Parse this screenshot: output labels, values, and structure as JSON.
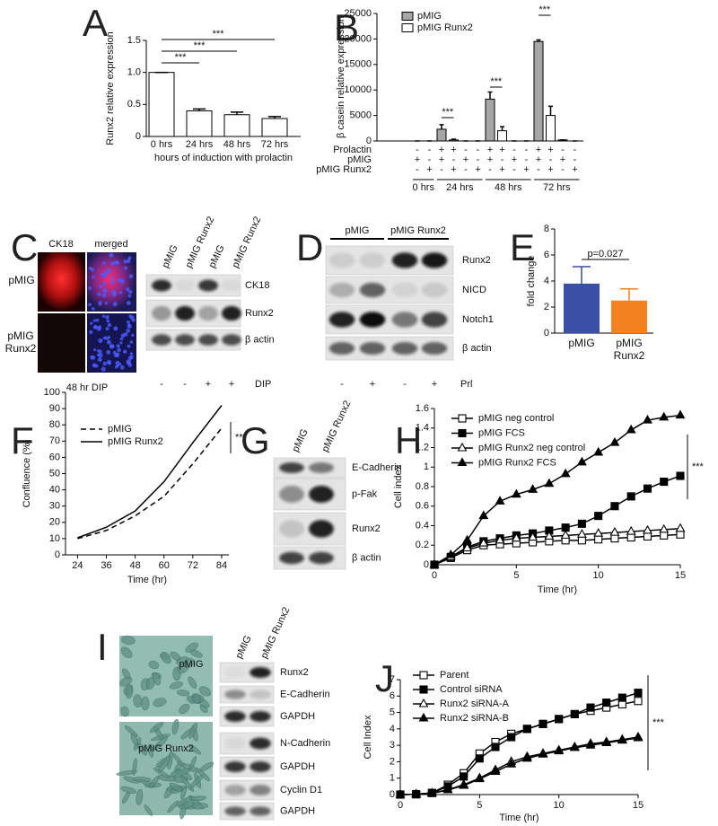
{
  "chart_data": [
    {
      "panel": "A",
      "type": "bar",
      "categories": [
        "0 hrs",
        "24 hrs",
        "48 hrs",
        "72 hrs"
      ],
      "values": [
        1.0,
        0.4,
        0.34,
        0.28
      ],
      "errors": [
        0,
        0.03,
        0.04,
        0.03
      ],
      "color": "#ffffff",
      "edgecolor": "#000000",
      "ylim": [
        0,
        1.5
      ],
      "yticks": [
        0,
        0.5,
        {
          "value": 1,
          "label": "1.0"
        },
        1.5
      ],
      "ylabel": "Runx2 relative expression",
      "xlabel": "hours of induction with prolactin",
      "annotations": [
        "***",
        "***",
        "***"
      ]
    },
    {
      "panel": "B",
      "type": "bar",
      "categories": [
        null,
        null,
        null,
        null,
        null,
        null,
        null,
        null,
        null,
        null,
        null,
        null,
        null,
        null
      ],
      "series": [
        {
          "name": "pMIG",
          "color": "#a6a6a6",
          "values": [
            0,
            null,
            2300,
            null,
            0,
            null,
            8200,
            null,
            0,
            null,
            19500,
            null,
            200,
            null
          ],
          "errors": [
            0,
            null,
            900,
            null,
            0,
            null,
            1400,
            null,
            0,
            null,
            300,
            null,
            0,
            null
          ]
        },
        {
          "name": "pMIG Runx2",
          "color": "#ffffff",
          "values": [
            null,
            0,
            null,
            200,
            null,
            0,
            null,
            2000,
            null,
            0,
            null,
            5000,
            null,
            0
          ],
          "errors": [
            null,
            0,
            null,
            150,
            null,
            0,
            null,
            800,
            null,
            0,
            null,
            1800,
            null,
            0
          ]
        }
      ],
      "edgecolor": "#000000",
      "ylim": [
        0,
        25000
      ],
      "yticks": [
        0,
        5000,
        10000,
        15000,
        20000,
        25000
      ],
      "ylabel": "β casein relative expression",
      "table": {
        "rows": [
          {
            "label": "Prolactin",
            "signs": [
              "-",
              "-",
              "+",
              "+",
              "-",
              "-",
              "+",
              "+",
              "-",
              "-",
              "+",
              "+",
              "-",
              "-"
            ]
          },
          {
            "label": "pMIG",
            "signs": [
              "+",
              "-",
              "+",
              "-",
              "+",
              "-",
              "+",
              "-",
              "+",
              "-",
              "+",
              "-",
              "+",
              "-"
            ]
          },
          {
            "label": "pMIG Runx2",
            "signs": [
              "-",
              "+",
              "-",
              "+",
              "-",
              "+",
              "-",
              "+",
              "-",
              "+",
              "-",
              "+",
              "-",
              "+"
            ]
          }
        ],
        "groups": [
          "0 hrs",
          "24 hrs",
          "48 hrs",
          "72 hrs"
        ]
      },
      "annotations": [
        "***",
        "***",
        "***"
      ]
    },
    {
      "panel": "E",
      "type": "bar",
      "categories": [
        "pMIG",
        "pMIG Runx2"
      ],
      "values": [
        3.8,
        2.5
      ],
      "errors": [
        1.3,
        0.9
      ],
      "colors": [
        "#3a4fa8",
        "#f58220"
      ],
      "ylim": [
        0,
        8
      ],
      "yticks": [
        0,
        2,
        4,
        6,
        8
      ],
      "ylabel": "fold change",
      "annotations": [
        "p=0.027"
      ]
    },
    {
      "panel": "F",
      "type": "line",
      "x": [
        24,
        36,
        48,
        60,
        72,
        84
      ],
      "xlim": [
        19,
        87
      ],
      "xticks": [
        24,
        36,
        48,
        60,
        72,
        84
      ],
      "ylim": [
        0,
        100
      ],
      "yticks": [
        0,
        10,
        20,
        30,
        40,
        50,
        60,
        70,
        80,
        90,
        100
      ],
      "series": [
        {
          "name": "pMIG",
          "color": "#000000",
          "style": "dashed",
          "values": [
            10,
            15,
            24,
            36,
            56,
            78
          ]
        },
        {
          "name": "pMIG Runx2",
          "color": "#000000",
          "style": "solid",
          "values": [
            10.5,
            17,
            27,
            45,
            69,
            92
          ]
        }
      ],
      "xlabel": "Time (hr)",
      "ylabel": "Confluence (%)",
      "annotations": [
        "***"
      ]
    },
    {
      "panel": "H",
      "type": "line",
      "x": [
        0,
        1,
        2,
        3,
        4,
        5,
        6,
        7,
        8,
        9,
        10,
        11,
        12,
        13,
        14,
        15
      ],
      "xlim": [
        0,
        15
      ],
      "xticks": [
        0,
        5,
        10,
        15
      ],
      "ylim": [
        0,
        1.6
      ],
      "yticks": [
        0,
        0.2,
        0.4,
        0.6,
        0.8,
        1,
        1.2,
        1.4,
        1.6
      ],
      "series": [
        {
          "name": "pMIG neg control",
          "color": "#000000",
          "marker": "square-open",
          "values": [
            0,
            0.07,
            0.15,
            0.2,
            0.21,
            0.22,
            0.23,
            0.24,
            0.25,
            0.25,
            0.26,
            0.27,
            0.28,
            0.29,
            0.3,
            0.31
          ]
        },
        {
          "name": "pMIG FCS",
          "color": "#000000",
          "marker": "square-filled",
          "values": [
            0,
            0.08,
            0.18,
            0.24,
            0.27,
            0.3,
            0.32,
            0.35,
            0.38,
            0.42,
            0.5,
            0.6,
            0.7,
            0.78,
            0.85,
            0.91
          ]
        },
        {
          "name": "pMIG Runx2 neg control",
          "color": "#000000",
          "marker": "triangle-open",
          "values": [
            0,
            0.08,
            0.17,
            0.22,
            0.25,
            0.27,
            0.28,
            0.29,
            0.3,
            0.31,
            0.32,
            0.33,
            0.34,
            0.35,
            0.36,
            0.37
          ]
        },
        {
          "name": "pMIG Runx2 FCS",
          "color": "#000000",
          "marker": "triangle-filled",
          "values": [
            0,
            0.1,
            0.25,
            0.5,
            0.65,
            0.72,
            0.77,
            0.83,
            0.93,
            1.05,
            1.15,
            1.25,
            1.38,
            1.48,
            1.51,
            1.53
          ]
        }
      ],
      "xlabel": "Time (hr)",
      "ylabel": "Cell index",
      "annotations": [
        "***"
      ]
    },
    {
      "panel": "J",
      "type": "line",
      "x": [
        0,
        1,
        2,
        3,
        4,
        5,
        6,
        7,
        8,
        9,
        10,
        11,
        12,
        13,
        14,
        15
      ],
      "xlim": [
        0,
        15
      ],
      "xticks": [
        0,
        5,
        10,
        15
      ],
      "ylim": [
        0,
        7
      ],
      "yticks": [
        0,
        1,
        2,
        3,
        4,
        5,
        6,
        7
      ],
      "series": [
        {
          "name": "Parent",
          "color": "#000000",
          "marker": "square-open",
          "values": [
            0,
            0.02,
            0.1,
            0.6,
            1.3,
            2.5,
            3.2,
            3.7,
            4,
            4.3,
            4.6,
            4.9,
            5.1,
            5.3,
            5.5,
            5.7
          ]
        },
        {
          "name": "Control siRNA",
          "color": "#000000",
          "marker": "square-filled",
          "values": [
            0,
            0.02,
            0.1,
            0.5,
            1.1,
            2.2,
            2.9,
            3.5,
            4,
            4.3,
            4.6,
            4.9,
            5.3,
            5.6,
            5.9,
            6.2
          ]
        },
        {
          "name": "Runx2 siRNA-A",
          "color": "#000000",
          "marker": "triangle-open",
          "values": [
            0,
            0.02,
            0.08,
            0.3,
            0.6,
            1.0,
            1.5,
            2.0,
            2.3,
            2.5,
            2.7,
            2.9,
            3.1,
            3.2,
            3.35,
            3.5
          ]
        },
        {
          "name": "Runx2 siRNA-B",
          "color": "#000000",
          "marker": "triangle-filled",
          "values": [
            0,
            0.02,
            0.07,
            0.28,
            0.55,
            0.95,
            1.4,
            1.85,
            2.2,
            2.45,
            2.65,
            2.85,
            3.0,
            3.15,
            3.3,
            3.45
          ]
        }
      ],
      "xlabel": "Time (hr)",
      "ylabel": "Cell Index",
      "annotations": [
        "***"
      ]
    }
  ],
  "blots": [
    {
      "panel": "C",
      "lanes": [
        "pMIG",
        "pMIG Runx2",
        "pMIG",
        "pMIG Runx2"
      ],
      "bands": [
        "CK18",
        "Runx2",
        "β actin"
      ],
      "treatment": {
        "signs": [
          "-",
          "-",
          "+",
          "+"
        ],
        "label": "DIP"
      },
      "images": {
        "columns": [
          "CK18",
          "merged"
        ],
        "rows": [
          "pMIG",
          "pMIG Runx2"
        ],
        "caption": "48 hr DIP"
      }
    },
    {
      "panel": "D",
      "groups": [
        "pMIG",
        "pMIG Runx2"
      ],
      "bands": [
        "Runx2",
        "NICD",
        "Notch1",
        "β actin"
      ],
      "treatment": {
        "signs": [
          "-",
          "+",
          "-",
          "+"
        ],
        "label": "Prl"
      }
    },
    {
      "panel": "G",
      "lanes": [
        "pMIG",
        "pMIG Runx2"
      ],
      "bands": [
        "E-Cadherin",
        "p-Fak",
        "Runx2",
        "β actin"
      ]
    },
    {
      "panel": "I",
      "lanes": [
        "pMIG",
        "pMIG Runx2"
      ],
      "bands": [
        "Runx2",
        "E-Cadherin",
        "GAPDH",
        "N-Cadherin",
        "GAPDH",
        "Cyclin D1",
        "GAPDH"
      ],
      "images": {
        "labels": [
          "pMIG",
          "pMIG Runx2"
        ]
      }
    }
  ]
}
